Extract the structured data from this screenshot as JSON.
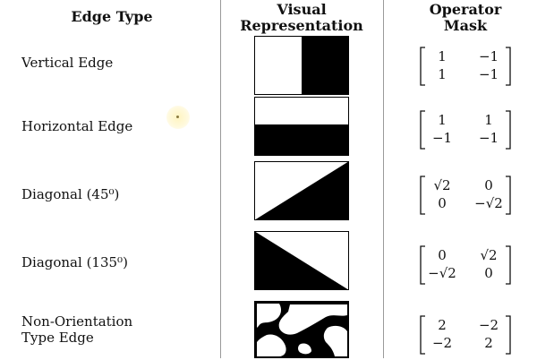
{
  "headers": {
    "edge_type": "Edge Type",
    "visual": "Visual\nRepresentation",
    "mask": "Operator\nMask"
  },
  "rows": [
    {
      "label": "Vertical Edge",
      "pattern": "vertical",
      "matrix": [
        [
          "1",
          "−1"
        ],
        [
          "1",
          "−1"
        ]
      ]
    },
    {
      "label": "Horizontal Edge",
      "pattern": "horizontal",
      "matrix": [
        [
          "1",
          "1"
        ],
        [
          "−1",
          "−1"
        ]
      ]
    },
    {
      "label": "Diagonal  (45⁰)",
      "pattern": "diagonal-45",
      "matrix": [
        [
          "√2",
          "0"
        ],
        [
          "0",
          "−√2"
        ]
      ]
    },
    {
      "label": "Diagonal (135⁰)",
      "pattern": "diagonal-135",
      "matrix": [
        [
          "0",
          "√2"
        ],
        [
          "−√2",
          "0"
        ]
      ]
    },
    {
      "label": "Non-Orientation\nType Edge",
      "pattern": "blob",
      "matrix": [
        [
          "2",
          "−2"
        ],
        [
          "−2",
          "2"
        ]
      ]
    }
  ],
  "colors": {
    "fill": "#000000",
    "background": "#ffffff",
    "divider": "#9a9a9a"
  }
}
